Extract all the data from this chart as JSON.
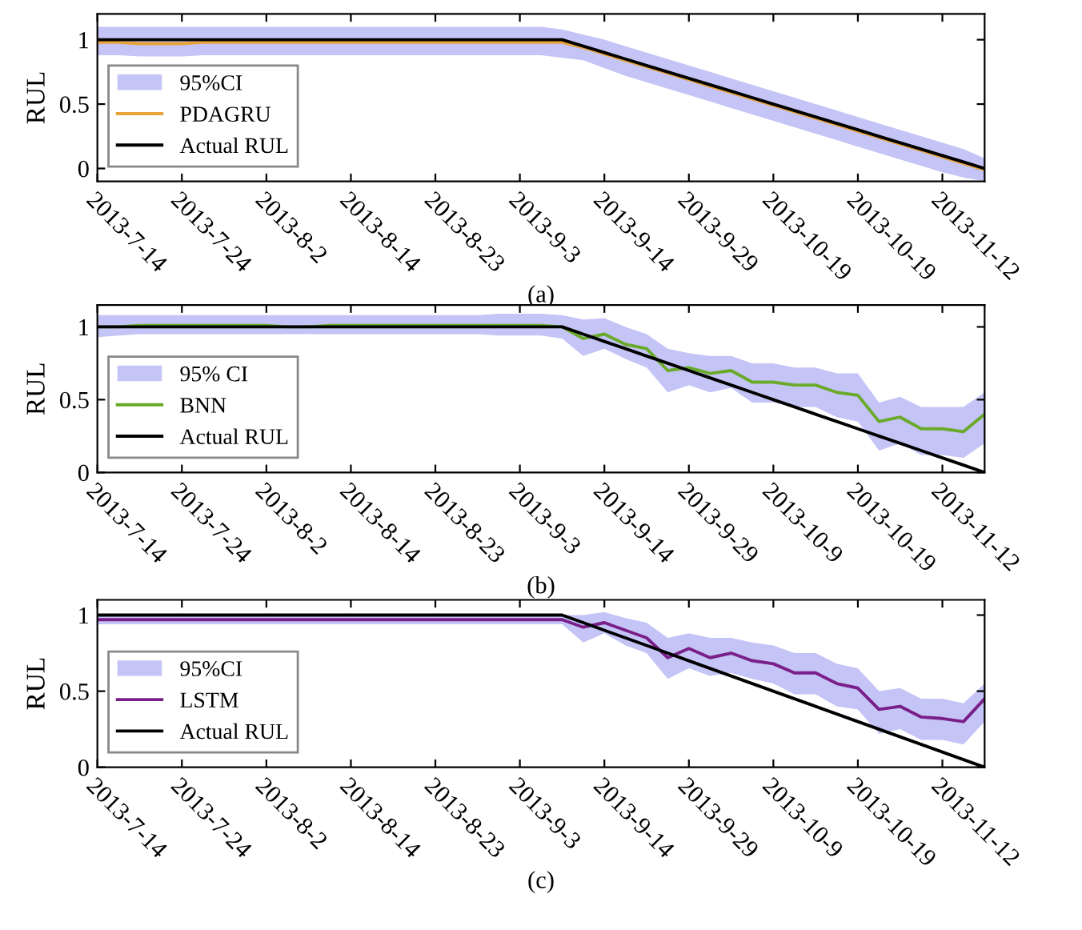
{
  "chart_data": [
    {
      "type": "line",
      "ylabel": "RUL",
      "annotations": [
        "95%CI",
        "(a)"
      ],
      "ylim": [
        -0.1,
        1.2
      ],
      "yticks": [
        0,
        0.5,
        1
      ],
      "categories": [
        "2013-7-14",
        null,
        null,
        null,
        "2013-7-24",
        null,
        null,
        null,
        "2013-8-2",
        null,
        null,
        null,
        "2013-8-14",
        null,
        null,
        null,
        "2013-8-23",
        null,
        null,
        null,
        "2013-9-3",
        null,
        null,
        null,
        "2013-9-14",
        null,
        null,
        null,
        "2013-9-29",
        null,
        null,
        null,
        "2013-10-19",
        null,
        null,
        null,
        "2013-10-19",
        null,
        null,
        null,
        "2013-11-12",
        null,
        null
      ],
      "legend": "left",
      "grid": false,
      "series": [
        {
          "name": "PDAGRU",
          "color": "#e8a33a",
          "values": [
            0.98,
            0.98,
            0.97,
            0.97,
            0.97,
            0.98,
            0.98,
            0.98,
            0.98,
            0.98,
            0.98,
            0.98,
            0.98,
            0.98,
            0.98,
            0.98,
            0.98,
            0.98,
            0.98,
            0.98,
            0.98,
            0.98,
            0.98,
            0.94,
            0.89,
            0.84,
            0.79,
            0.74,
            0.69,
            0.64,
            0.59,
            0.54,
            0.49,
            0.44,
            0.39,
            0.34,
            0.29,
            0.24,
            0.19,
            0.14,
            0.09,
            0.04,
            -0.01
          ],
          "upper": [
            1.1,
            1.1,
            1.1,
            1.1,
            1.1,
            1.1,
            1.1,
            1.1,
            1.1,
            1.1,
            1.1,
            1.1,
            1.1,
            1.1,
            1.1,
            1.1,
            1.1,
            1.1,
            1.1,
            1.1,
            1.1,
            1.1,
            1.08,
            1.04,
            1.0,
            0.95,
            0.9,
            0.85,
            0.8,
            0.75,
            0.7,
            0.65,
            0.6,
            0.55,
            0.5,
            0.45,
            0.4,
            0.35,
            0.3,
            0.25,
            0.2,
            0.15,
            0.08
          ],
          "lower": [
            0.88,
            0.88,
            0.87,
            0.87,
            0.87,
            0.88,
            0.88,
            0.88,
            0.88,
            0.88,
            0.88,
            0.88,
            0.88,
            0.88,
            0.88,
            0.88,
            0.88,
            0.88,
            0.88,
            0.88,
            0.88,
            0.88,
            0.86,
            0.84,
            0.78,
            0.72,
            0.67,
            0.62,
            0.57,
            0.52,
            0.47,
            0.42,
            0.37,
            0.32,
            0.27,
            0.22,
            0.17,
            0.12,
            0.07,
            0.02,
            -0.03,
            -0.07,
            -0.1
          ]
        },
        {
          "name": "Actual RUL",
          "color": "#000000",
          "values": [
            1,
            1,
            1,
            1,
            1,
            1,
            1,
            1,
            1,
            1,
            1,
            1,
            1,
            1,
            1,
            1,
            1,
            1,
            1,
            1,
            1,
            1,
            1,
            0.95,
            0.9,
            0.85,
            0.8,
            0.75,
            0.7,
            0.65,
            0.6,
            0.55,
            0.5,
            0.45,
            0.4,
            0.35,
            0.3,
            0.25,
            0.2,
            0.15,
            0.1,
            0.05,
            0
          ]
        }
      ]
    },
    {
      "type": "line",
      "ylabel": "RUL",
      "annotations": [
        "95% CI",
        "(b)"
      ],
      "ylim": [
        0,
        1.15
      ],
      "yticks": [
        0,
        0.5,
        1
      ],
      "categories": [
        "2013-7-14",
        null,
        null,
        null,
        "2013-7-24",
        null,
        null,
        null,
        "2013-8-2",
        null,
        null,
        null,
        "2013-8-14",
        null,
        null,
        null,
        "2013-8-23",
        null,
        null,
        null,
        "2013-9-3",
        null,
        null,
        null,
        "2013-9-14",
        null,
        null,
        null,
        "2013-9-29",
        null,
        null,
        null,
        "2013-10-9",
        null,
        null,
        null,
        "2013-10-19",
        null,
        null,
        null,
        "2013-11-12",
        null,
        null
      ],
      "legend": "left",
      "grid": false,
      "series": [
        {
          "name": "BNN",
          "color": "#6aaa2a",
          "values": [
            1.0,
            1.0,
            1.01,
            1.01,
            1.01,
            1.01,
            1.01,
            1.01,
            1.01,
            1.0,
            1.0,
            1.01,
            1.01,
            1.01,
            1.01,
            1.01,
            1.01,
            1.01,
            1.01,
            1.01,
            1.01,
            1.01,
            1.0,
            0.92,
            0.95,
            0.88,
            0.85,
            0.7,
            0.72,
            0.68,
            0.7,
            0.62,
            0.62,
            0.6,
            0.6,
            0.55,
            0.53,
            0.35,
            0.38,
            0.3,
            0.3,
            0.28,
            0.4
          ],
          "upper": [
            1.08,
            1.08,
            1.08,
            1.08,
            1.08,
            1.08,
            1.08,
            1.08,
            1.08,
            1.08,
            1.08,
            1.08,
            1.08,
            1.08,
            1.08,
            1.08,
            1.08,
            1.08,
            1.08,
            1.09,
            1.09,
            1.09,
            1.08,
            1.05,
            1.06,
            1.0,
            0.95,
            0.85,
            0.82,
            0.8,
            0.8,
            0.75,
            0.75,
            0.72,
            0.72,
            0.68,
            0.68,
            0.48,
            0.52,
            0.45,
            0.45,
            0.45,
            0.55
          ],
          "lower": [
            0.93,
            0.94,
            0.95,
            0.95,
            0.95,
            0.95,
            0.95,
            0.95,
            0.95,
            0.95,
            0.95,
            0.95,
            0.95,
            0.95,
            0.95,
            0.95,
            0.95,
            0.95,
            0.95,
            0.94,
            0.94,
            0.94,
            0.92,
            0.8,
            0.85,
            0.78,
            0.72,
            0.55,
            0.6,
            0.55,
            0.58,
            0.48,
            0.48,
            0.45,
            0.45,
            0.38,
            0.35,
            0.15,
            0.2,
            0.12,
            0.12,
            0.1,
            0.2
          ]
        },
        {
          "name": "Actual RUL",
          "color": "#000000",
          "values": [
            1,
            1,
            1,
            1,
            1,
            1,
            1,
            1,
            1,
            1,
            1,
            1,
            1,
            1,
            1,
            1,
            1,
            1,
            1,
            1,
            1,
            1,
            1,
            0.95,
            0.9,
            0.85,
            0.8,
            0.75,
            0.7,
            0.65,
            0.6,
            0.55,
            0.5,
            0.45,
            0.4,
            0.35,
            0.3,
            0.25,
            0.2,
            0.15,
            0.1,
            0.05,
            0
          ]
        }
      ]
    },
    {
      "type": "line",
      "ylabel": "RUL",
      "annotations": [
        "95%CI",
        "(c)"
      ],
      "ylim": [
        0,
        1.1
      ],
      "yticks": [
        0,
        0.5,
        1
      ],
      "categories": [
        "2013-7-14",
        null,
        null,
        null,
        "2013-7-24",
        null,
        null,
        null,
        "2013-8-2",
        null,
        null,
        null,
        "2013-8-14",
        null,
        null,
        null,
        "2013-8-23",
        null,
        null,
        null,
        "2013-9-3",
        null,
        null,
        null,
        "2013-9-14",
        null,
        null,
        null,
        "2013-9-29",
        null,
        null,
        null,
        "2013-10-9",
        null,
        null,
        null,
        "2013-10-19",
        null,
        null,
        null,
        "2013-11-12",
        null,
        null
      ],
      "legend": "left",
      "grid": false,
      "series": [
        {
          "name": "LSTM",
          "color": "#7a1f8a",
          "values": [
            0.97,
            0.97,
            0.97,
            0.97,
            0.97,
            0.97,
            0.97,
            0.97,
            0.97,
            0.97,
            0.97,
            0.97,
            0.97,
            0.97,
            0.97,
            0.97,
            0.97,
            0.97,
            0.97,
            0.97,
            0.97,
            0.97,
            0.97,
            0.92,
            0.95,
            0.9,
            0.85,
            0.72,
            0.78,
            0.72,
            0.75,
            0.7,
            0.68,
            0.62,
            0.62,
            0.55,
            0.52,
            0.38,
            0.4,
            0.33,
            0.32,
            0.3,
            0.45
          ],
          "upper": [
            1.0,
            1.0,
            1.0,
            1.0,
            1.0,
            1.0,
            1.0,
            1.0,
            1.0,
            1.0,
            1.0,
            1.0,
            1.0,
            1.0,
            1.0,
            1.0,
            1.0,
            1.0,
            1.0,
            1.0,
            1.0,
            1.0,
            1.0,
            1.0,
            1.02,
            0.98,
            0.95,
            0.85,
            0.88,
            0.85,
            0.85,
            0.82,
            0.8,
            0.75,
            0.75,
            0.68,
            0.65,
            0.5,
            0.52,
            0.45,
            0.45,
            0.42,
            0.55
          ],
          "lower": [
            0.94,
            0.94,
            0.94,
            0.94,
            0.94,
            0.94,
            0.94,
            0.94,
            0.94,
            0.94,
            0.94,
            0.94,
            0.94,
            0.94,
            0.94,
            0.94,
            0.94,
            0.94,
            0.94,
            0.94,
            0.94,
            0.94,
            0.94,
            0.82,
            0.88,
            0.8,
            0.75,
            0.58,
            0.65,
            0.6,
            0.62,
            0.58,
            0.55,
            0.48,
            0.48,
            0.4,
            0.38,
            0.22,
            0.25,
            0.18,
            0.18,
            0.15,
            0.3
          ]
        },
        {
          "name": "Actual RUL",
          "color": "#000000",
          "values": [
            1,
            1,
            1,
            1,
            1,
            1,
            1,
            1,
            1,
            1,
            1,
            1,
            1,
            1,
            1,
            1,
            1,
            1,
            1,
            1,
            1,
            1,
            1,
            0.95,
            0.9,
            0.85,
            0.8,
            0.75,
            0.7,
            0.65,
            0.6,
            0.55,
            0.5,
            0.45,
            0.4,
            0.35,
            0.3,
            0.25,
            0.2,
            0.15,
            0.1,
            0.05,
            0
          ]
        }
      ]
    }
  ]
}
